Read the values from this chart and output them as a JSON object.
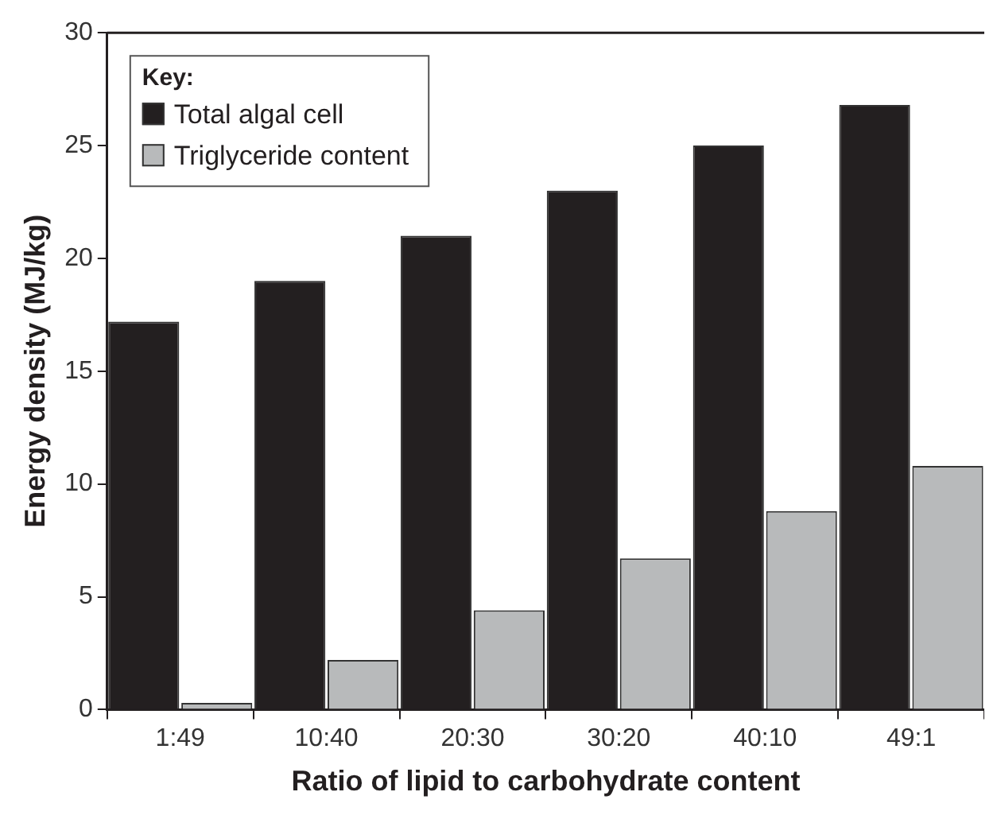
{
  "chart_data": {
    "type": "bar",
    "xlabel": "Ratio of lipid to carbohydrate content",
    "ylabel": "Energy density (MJ/kg)",
    "legend_title": "Key:",
    "categories": [
      "1:49",
      "10:40",
      "20:30",
      "30:20",
      "40:10",
      "49:1"
    ],
    "series": [
      {
        "name": "Total algal cell",
        "color": "#231f20",
        "values": [
          17.2,
          19,
          21,
          23,
          25,
          26.8
        ]
      },
      {
        "name": "Triglyceride content",
        "color": "#b8babb",
        "values": [
          0.3,
          2.2,
          4.4,
          6.7,
          8.8,
          10.8
        ]
      }
    ],
    "ylim": [
      0,
      30
    ],
    "yticks": [
      0,
      5,
      10,
      15,
      20,
      25,
      30
    ],
    "grid": false,
    "legend": "top left"
  }
}
